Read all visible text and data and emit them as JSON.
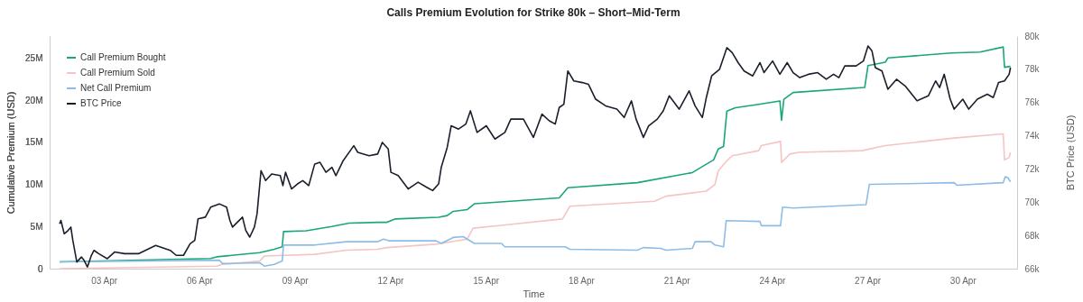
{
  "chart_data": {
    "type": "line",
    "title": "Calls Premium Evolution for Strike 80k – Short–Mid-Term",
    "xlabel": "Time",
    "ylabel": "Cumulative Premium (USD)",
    "y2label": "BTC Price (USD)",
    "legend": "top left",
    "xlim": [
      "--04-01T07:00",
      "--05-01T17:00"
    ],
    "xticks": [
      {
        "value": "--04-03",
        "label": "03 Apr"
      },
      {
        "value": "--04-06",
        "label": "06 Apr"
      },
      {
        "value": "--04-09",
        "label": "09 Apr"
      },
      {
        "value": "--04-12",
        "label": "12 Apr"
      },
      {
        "value": "--04-15",
        "label": "15 Apr"
      },
      {
        "value": "--04-18",
        "label": "18 Apr"
      },
      {
        "value": "--04-21",
        "label": "21 Apr"
      },
      {
        "value": "--04-24",
        "label": "24 Apr"
      },
      {
        "value": "--04-27",
        "label": "27 Apr"
      },
      {
        "value": "--04-30",
        "label": "30 Apr"
      }
    ],
    "ylim": [
      0,
      27600000
    ],
    "yticks": [
      0,
      {
        "value": 5000000,
        "label": "5M"
      },
      {
        "value": 10000000,
        "label": "10M"
      },
      {
        "value": 15000000,
        "label": "15M"
      },
      {
        "value": 20000000,
        "label": "20M"
      },
      {
        "value": 25000000,
        "label": "25M"
      }
    ],
    "y2lim": [
      66000,
      80000
    ],
    "y2ticks": [
      {
        "value": 66000,
        "label": "66k"
      },
      {
        "value": 68000,
        "label": "68k"
      },
      {
        "value": 70000,
        "label": "70k"
      },
      {
        "value": 72000,
        "label": "72k"
      },
      {
        "value": 74000,
        "label": "74k"
      },
      {
        "value": 76000,
        "label": "76k"
      },
      {
        "value": 78000,
        "label": "78k"
      },
      {
        "value": 80000,
        "label": "80k"
      }
    ],
    "series": [
      {
        "name": "Call Premium Bought",
        "color": "#19a67a",
        "x": [
          "--04-01T14:30",
          "--04-06T08:30",
          "--04-06T13:00",
          "--04-07T21:30",
          "--04-08T08:30",
          "--04-08T14:30",
          "--04-08T15:30",
          "--04-09T08:30",
          "--04-10T04:00",
          "--04-10T17:00",
          "--04-11T14:30",
          "--04-11T21:30",
          "--04-12T04:00",
          "--04-13T12:30",
          "--04-13T19:00",
          "--04-13T23:30",
          "--04-14T10:00",
          "--04-14T15:30",
          "--04-17T07:30",
          "--04-17T14:00",
          "--04-19T18:30",
          "--04-21T12:00",
          "--04-21T22:30",
          "--04-22T04:00",
          "--04-22T07:30",
          "--04-22T11:30",
          "--04-22T14:00",
          "--04-22T20:30",
          "--04-23T14:00",
          "--04-24T06:00",
          "--04-24T07:15",
          "--04-24T09:00",
          "--04-24T16:00",
          "--04-26T22:00",
          "--04-27T00:30",
          "--04-27T13:30",
          "--04-27T15:30",
          "--04-29T15:30",
          "--04-30T13:00",
          "--05-01T06:30",
          "--05-01T07:30",
          "--05-01T12:00"
        ],
        "values": [
          800000,
          1200000,
          1400000,
          1900000,
          2300000,
          2600000,
          4400000,
          4500000,
          5000000,
          5400000,
          5500000,
          5500000,
          5900000,
          6100000,
          6300000,
          6800000,
          7000000,
          7700000,
          8400000,
          9600000,
          10200000,
          11400000,
          12400000,
          12900000,
          14200000,
          14500000,
          18700000,
          19100000,
          19500000,
          19900000,
          17600000,
          20100000,
          20900000,
          21500000,
          24100000,
          24500000,
          25000000,
          25600000,
          25700000,
          26300000,
          23900000,
          24000000
        ]
      },
      {
        "name": "Call Premium Sold",
        "color": "#f5c4c4",
        "x": [
          "--04-01T14:30",
          "--04-06T13:00",
          "--04-06T17:00",
          "--04-07T21:30",
          "--04-08T01:00",
          "--04-09T15:00",
          "--04-10T15:00",
          "--04-11T14:30",
          "--04-11T21:30",
          "--04-13T10:30",
          "--04-14T10:00",
          "--04-14T14:30",
          "--04-15T10:00",
          "--04-17T10:00",
          "--04-17T15:30",
          "--04-20T07:30",
          "--04-20T16:00",
          "--04-21T22:30",
          "--04-22T05:00",
          "--04-22T07:30",
          "--04-22T14:00",
          "--04-22T18:00",
          "--04-23T14:00",
          "--04-23T16:00",
          "--04-24T06:30",
          "--04-24T07:15",
          "--04-24T13:30",
          "--04-24T20:00",
          "--04-26T20:00",
          "--04-27T13:30",
          "--04-29T17:30",
          "--05-01T06:30",
          "--05-01T07:30",
          "--05-01T11:00",
          "--05-01T12:00"
        ],
        "values": [
          0,
          300000,
          500000,
          900000,
          1500000,
          1700000,
          2200000,
          2300000,
          2500000,
          2900000,
          3500000,
          4800000,
          5100000,
          5900000,
          7400000,
          8000000,
          8600000,
          9200000,
          10000000,
          11600000,
          12800000,
          13400000,
          14000000,
          14600000,
          15100000,
          12600000,
          13600000,
          13800000,
          14000000,
          14600000,
          15500000,
          16000000,
          12900000,
          13200000,
          13800000
        ]
      },
      {
        "name": "Net Call Premium",
        "color": "#8dbde6",
        "x": [
          "--04-01T14:30",
          "--04-06T15:00",
          "--04-06T17:30",
          "--04-07T21:30",
          "--04-08T01:00",
          "--04-08T08:30",
          "--04-08T14:30",
          "--04-08T15:30",
          "--04-09T15:00",
          "--04-10T15:00",
          "--04-11T14:30",
          "--04-11T19:00",
          "--04-11T23:30",
          "--04-13T10:30",
          "--04-13T14:30",
          "--04-13T23:30",
          "--04-14T07:00",
          "--04-14T15:30",
          "--04-15T12:00",
          "--04-15T14:30",
          "--04-17T12:00",
          "--04-17T15:30",
          "--04-19T18:30",
          "--04-19T23:00",
          "--04-20T12:00",
          "--04-20T16:00",
          "--04-21T12:00",
          "--04-21T14:00",
          "--04-22T02:00",
          "--04-22T05:00",
          "--04-22T11:30",
          "--04-22T13:30",
          "--04-23T15:00",
          "--04-23T16:00",
          "--04-24T06:30",
          "--04-24T08:00",
          "--04-24T16:00",
          "--04-26T23:00",
          "--04-27T01:30",
          "--04-29T17:30",
          "--04-29T19:30",
          "--05-01T06:30",
          "--05-01T08:00",
          "--05-01T10:00",
          "--05-01T12:00"
        ],
        "values": [
          800000,
          1000000,
          600000,
          700000,
          300000,
          500000,
          900000,
          2800000,
          2800000,
          3200000,
          3200000,
          3500000,
          3300000,
          3300000,
          3000000,
          3700000,
          3800000,
          3000000,
          3000000,
          2600000,
          2600000,
          2300000,
          2200000,
          2500000,
          2400000,
          2200000,
          2400000,
          3200000,
          3200000,
          2800000,
          2600000,
          5700000,
          5600000,
          5100000,
          5100000,
          7300000,
          7200000,
          7600000,
          10000000,
          10200000,
          9900000,
          10200000,
          10900000,
          10800000,
          10300000
        ]
      },
      {
        "name": "BTC Price",
        "color": "#1a1f2b",
        "axis": "y2",
        "x": [
          "--04-01T14:30",
          "--04-01T15:30",
          "--04-01T18:00",
          "--04-01T21:00",
          "--04-01T23:00",
          "--04-02T00:30",
          "--04-02T03:30",
          "--04-02T07:00",
          "--04-02T09:00",
          "--04-02T11:30",
          "--04-02T14:30",
          "--04-02T16:30",
          "--04-02T20:00",
          "--04-03T02:30",
          "--04-03T08:00",
          "--04-03T15:30",
          "--04-04T02:00",
          "--04-04T15:00",
          "--04-05T02:00",
          "--04-05T06:30",
          "--04-05T12:00",
          "--04-05T17:00",
          "--04-05T20:30",
          "--04-05T23:00",
          "--04-06T04:30",
          "--04-06T08:30",
          "--04-06T15:00",
          "--04-06T20:30",
          "--04-06T23:00",
          "--04-07T01:00",
          "--04-07T08:30",
          "--04-07T11:00",
          "--04-07T14:00",
          "--04-07T17:30",
          "--04-07T19:30",
          "--04-07T22:30",
          "--04-08T02:00",
          "--04-08T06:30",
          "--04-08T13:00",
          "--04-08T15:00",
          "--04-08T17:00",
          "--04-08T21:30",
          "--04-09T02:00",
          "--04-09T06:00",
          "--04-09T10:30",
          "--04-09T15:00",
          "--04-09T19:00",
          "--04-09T23:30",
          "--04-10T04:00",
          "--04-10T07:00",
          "--04-10T12:30",
          "--04-10T20:30",
          "--04-10T23:30",
          "--04-11T08:00",
          "--04-11T14:30",
          "--04-11T18:00",
          "--04-11T22:30",
          "--04-12T00:30",
          "--04-12T06:00",
          "--04-12T13:30",
          "--04-12T21:00",
          "--04-13T03:30",
          "--04-13T08:00",
          "--04-13T12:30",
          "--04-13T14:30",
          "--04-13T19:00",
          "--04-13T22:00",
          "--04-14T03:30",
          "--04-14T09:00",
          "--04-14T12:30",
          "--04-14T17:30",
          "--04-15T00:30",
          "--04-15T07:00",
          "--04-15T14:30",
          "--04-15T19:00",
          "--04-16T04:30",
          "--04-16T12:00",
          "--04-16T18:30",
          "--04-17T00:00",
          "--04-17T04:30",
          "--04-17T07:30",
          "--04-17T11:00",
          "--04-17T14:00",
          "--04-17T18:30",
          "--04-18T01:00",
          "--04-18T05:30",
          "--04-18T11:00",
          "--04-18T18:30",
          "--04-19T03:00",
          "--04-19T08:30",
          "--04-19T14:00",
          "--04-19T17:30",
          "--04-19T23:00",
          "--04-20T03:00",
          "--04-20T09:30",
          "--04-20T14:00",
          "--04-20T18:30",
          "--04-21T02:00",
          "--04-21T09:30",
          "--04-21T14:00",
          "--04-21T19:30",
          "--04-21T22:30",
          "--04-22T02:30",
          "--04-22T08:30",
          "--04-22T14:00",
          "--04-22T18:00",
          "--04-22T22:30",
          "--04-23T03:00",
          "--04-23T09:30",
          "--04-23T15:00",
          "--04-23T18:00",
          "--04-24T00:30",
          "--04-24T06:00",
          "--04-24T11:30",
          "--04-24T16:00",
          "--04-24T21:00",
          "--04-25T03:30",
          "--04-25T10:30",
          "--04-25T17:00",
          "--04-25T22:30",
          "--04-26T02:30",
          "--04-26T07:00",
          "--04-26T15:30",
          "--04-26T21:00",
          "--04-27T00:30",
          "--04-27T03:30",
          "--04-27T06:00",
          "--04-27T11:00",
          "--04-27T15:30",
          "--04-27T22:00",
          "--04-28T04:30",
          "--04-28T13:30",
          "--04-28T22:00",
          "--04-29T03:30",
          "--04-29T06:30",
          "--04-29T10:00",
          "--04-29T14:30",
          "--04-29T17:30",
          "--04-30T00:00",
          "--04-30T04:30",
          "--04-30T11:00",
          "--04-30T18:30",
          "--04-30T23:00",
          "--05-01T03:00",
          "--05-01T07:30",
          "--05-01T11:00",
          "--05-01T12:00"
        ],
        "values": [
          68700,
          68900,
          68100,
          68300,
          68500,
          67700,
          66400,
          66700,
          66500,
          66100,
          66800,
          67100,
          66900,
          66600,
          67000,
          66900,
          66900,
          67400,
          67100,
          66800,
          66800,
          67500,
          67700,
          69000,
          69100,
          69700,
          69900,
          69700,
          68900,
          68500,
          69100,
          68300,
          67900,
          68500,
          69300,
          71900,
          71300,
          71700,
          71600,
          71000,
          71800,
          70800,
          71100,
          71300,
          71000,
          72300,
          72400,
          71800,
          72100,
          71600,
          72500,
          73400,
          73000,
          72800,
          72900,
          73600,
          73200,
          71800,
          71600,
          70800,
          71200,
          70900,
          70700,
          71100,
          72100,
          73300,
          74600,
          74400,
          74700,
          75500,
          74200,
          74600,
          73800,
          74200,
          75000,
          75000,
          73900,
          75300,
          74900,
          74700,
          75700,
          75900,
          77900,
          77300,
          77200,
          77100,
          76200,
          75800,
          75600,
          75100,
          76100,
          75000,
          73900,
          74600,
          75000,
          75500,
          76400,
          75600,
          76700,
          75800,
          75100,
          76300,
          77600,
          78000,
          79300,
          79000,
          78400,
          77900,
          77600,
          78400,
          77800,
          78500,
          77700,
          78400,
          77800,
          77500,
          77700,
          77800,
          77400,
          77700,
          77500,
          78200,
          78200,
          78500,
          79400,
          79100,
          78100,
          77900,
          76800,
          77400,
          77000,
          76100,
          76400,
          77300,
          76900,
          77700,
          76200,
          75600,
          76200,
          75600,
          76200,
          76500,
          76300,
          77200,
          77300,
          77700,
          78100
        ]
      }
    ]
  }
}
